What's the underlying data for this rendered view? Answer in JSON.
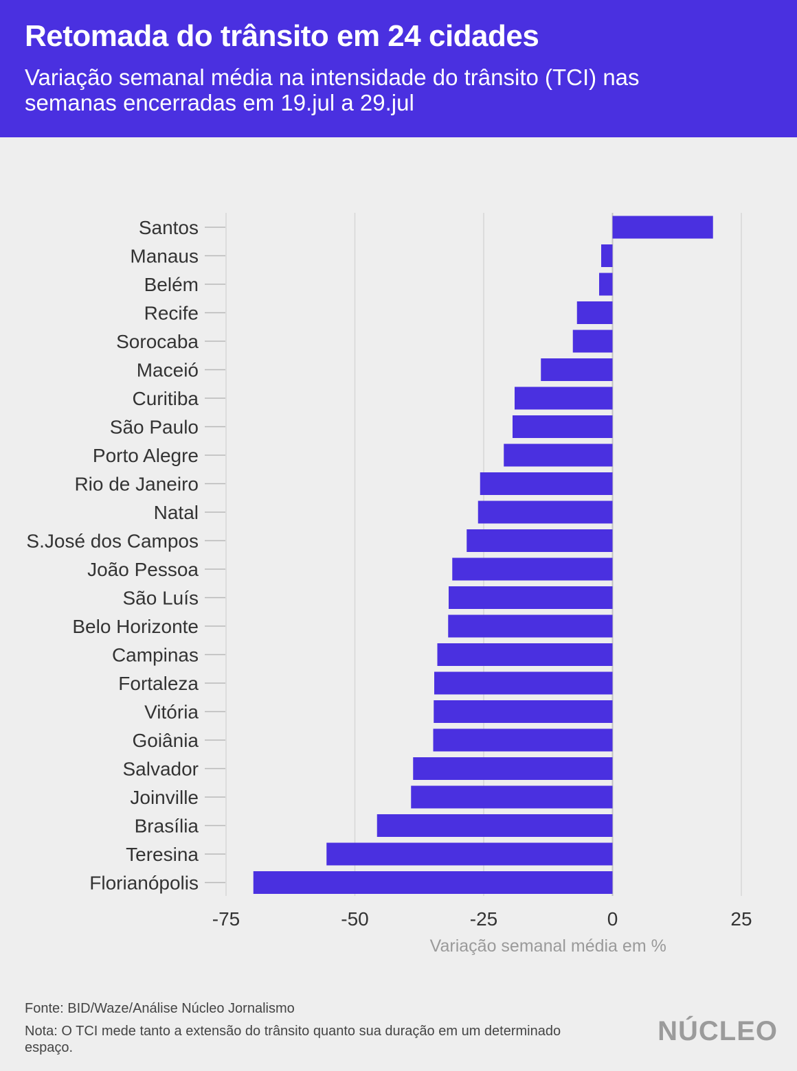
{
  "header": {
    "title": "Retomada do trânsito em 24 cidades",
    "subtitle": "Variação semanal média na intensidade do trânsito (TCI) nas semanas encerradas em 19.jul a 29.jul"
  },
  "chart_data": {
    "type": "bar",
    "orientation": "horizontal",
    "categories": [
      "Santos",
      "Manaus",
      "Belém",
      "Recife",
      "Sorocaba",
      "Maceió",
      "Curitiba",
      "São Paulo",
      "Porto Alegre",
      "Rio de Janeiro",
      "Natal",
      "S.José dos Campos",
      "João Pessoa",
      "São Luís",
      "Belo Horizonte",
      "Campinas",
      "Fortaleza",
      "Vitória",
      "Goiânia",
      "Salvador",
      "Joinville",
      "Brasília",
      "Teresina",
      "Florianópolis"
    ],
    "values": [
      19.5,
      -2.2,
      -2.6,
      -6.9,
      -7.7,
      -13.9,
      -19.0,
      -19.4,
      -21.1,
      -25.7,
      -26.1,
      -28.3,
      -31.1,
      -31.8,
      -31.9,
      -34.0,
      -34.6,
      -34.7,
      -34.8,
      -38.7,
      -39.1,
      -45.7,
      -55.5,
      -69.7
    ],
    "xlim": [
      -75,
      25
    ],
    "xticks": [
      -75,
      -50,
      -25,
      0,
      25
    ],
    "xlabel": "Variação semanal média em %",
    "bar_color": "#4a30e0",
    "grid": true
  },
  "footer": {
    "source": "Fonte: BID/Waze/Análise Núcleo Jornalismo",
    "note": "Nota: O TCI mede tanto a extensão do trânsito quanto sua duração em um determinado espaço."
  },
  "logo": "NÚCLEO",
  "colors": {
    "header_bg": "#4a30e0",
    "background": "#eeeeee",
    "bars": "#4a30e0"
  }
}
